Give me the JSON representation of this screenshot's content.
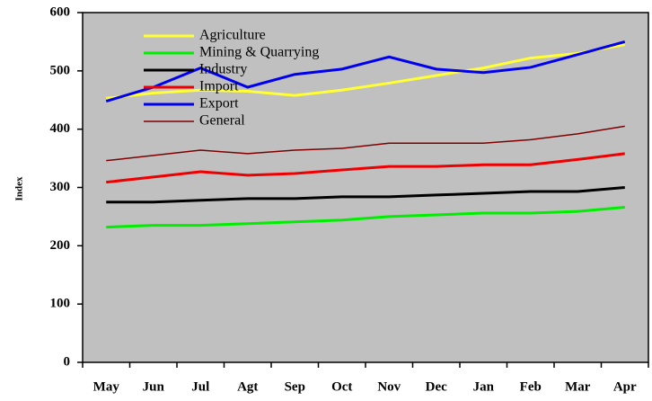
{
  "chart_data": {
    "type": "line",
    "y_label": "Index",
    "categories": [
      "May",
      "Jun",
      "Jul",
      "Agt",
      "Sep",
      "Oct",
      "Nov",
      "Dec",
      "Jan",
      "Feb",
      "Mar",
      "Apr"
    ],
    "series": [
      {
        "name": "Agriculture",
        "color": "#ffff33",
        "values": [
          453,
          462,
          467,
          465,
          458,
          467,
          479,
          492,
          505,
          522,
          530,
          545
        ]
      },
      {
        "name": "Mining & Quarrying",
        "color": "#00ee00",
        "values": [
          232,
          235,
          235,
          238,
          241,
          244,
          250,
          253,
          256,
          256,
          259,
          266
        ]
      },
      {
        "name": "Industry",
        "color": "#000000",
        "values": [
          275,
          275,
          278,
          281,
          281,
          284,
          284,
          287,
          290,
          293,
          293,
          300
        ]
      },
      {
        "name": "Import",
        "color": "#ee0000",
        "values": [
          309,
          318,
          327,
          321,
          324,
          330,
          336,
          336,
          339,
          339,
          348,
          358
        ]
      },
      {
        "name": "Export",
        "color": "#0000ee",
        "values": [
          448,
          472,
          505,
          472,
          494,
          503,
          524,
          503,
          497,
          506,
          528,
          550
        ]
      },
      {
        "name": "General",
        "color": "#800000",
        "values": [
          346,
          355,
          364,
          358,
          364,
          367,
          376,
          376,
          376,
          382,
          392,
          405
        ]
      }
    ],
    "ylim": [
      0,
      600
    ],
    "yticks": [
      0,
      100,
      200,
      300,
      400,
      500,
      600
    ],
    "background": "#c0c0c0"
  }
}
